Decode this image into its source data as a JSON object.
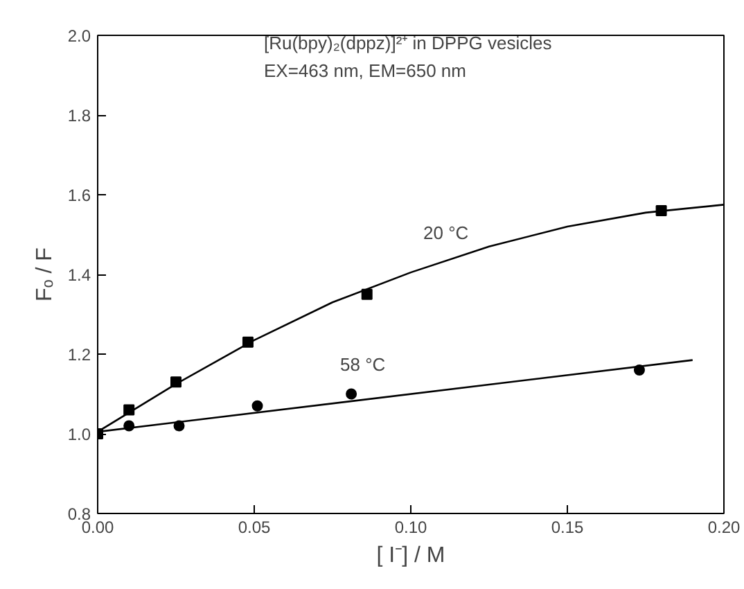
{
  "chart_data": {
    "type": "scatter",
    "xlabel": "[ I⁻] / M",
    "ylabel": "Fₒ / F",
    "xlim": [
      0,
      0.2
    ],
    "xticks": [
      {
        "value": 0,
        "label": "0.00"
      },
      {
        "value": 0.05,
        "label": "0.05"
      },
      {
        "value": 0.1,
        "label": "0.10"
      },
      {
        "value": 0.15,
        "label": "0.15"
      },
      {
        "value": 0.2,
        "label": "0.20"
      }
    ],
    "ylim": [
      0.8,
      2.0
    ],
    "yticks": [
      {
        "value": 0.8,
        "label": "0.8"
      },
      {
        "value": 1.0,
        "label": "1.0"
      },
      {
        "value": 1.2,
        "label": "1.2"
      },
      {
        "value": 1.4,
        "label": "1.4"
      },
      {
        "value": 1.6,
        "label": "1.6"
      },
      {
        "value": 1.8,
        "label": "1.8"
      },
      {
        "value": 2.0,
        "label": "2.0"
      }
    ],
    "series": [
      {
        "marker": "square",
        "color": "#000000",
        "x": [
          0,
          0.01,
          0.025,
          0.048,
          0.086,
          0.18
        ],
        "values": [
          1.0,
          1.06,
          1.13,
          1.23,
          1.35,
          1.56
        ]
      },
      {
        "marker": "circle",
        "color": "#000000",
        "x": [
          0.01,
          0.026,
          0.051,
          0.081,
          0.173
        ],
        "values": [
          1.02,
          1.02,
          1.07,
          1.1,
          1.16
        ]
      },
      {
        "type": "line",
        "color": "#000000",
        "x": [
          0,
          0.025,
          0.05,
          0.075,
          0.1,
          0.125,
          0.15,
          0.175,
          0.2
        ],
        "values": [
          1.005,
          1.125,
          1.235,
          1.33,
          1.405,
          1.47,
          1.52,
          1.555,
          1.575
        ]
      },
      {
        "type": "line",
        "color": "#000000",
        "x": [
          0,
          0.19
        ],
        "values": [
          1.005,
          1.185
        ]
      }
    ],
    "annotations": [
      "[Ru(bpy)₂(dppz)]²⁺ in DPPG vesicles",
      "EX=463 nm, EM=650 nm",
      "20 °C",
      "58 °C"
    ]
  }
}
